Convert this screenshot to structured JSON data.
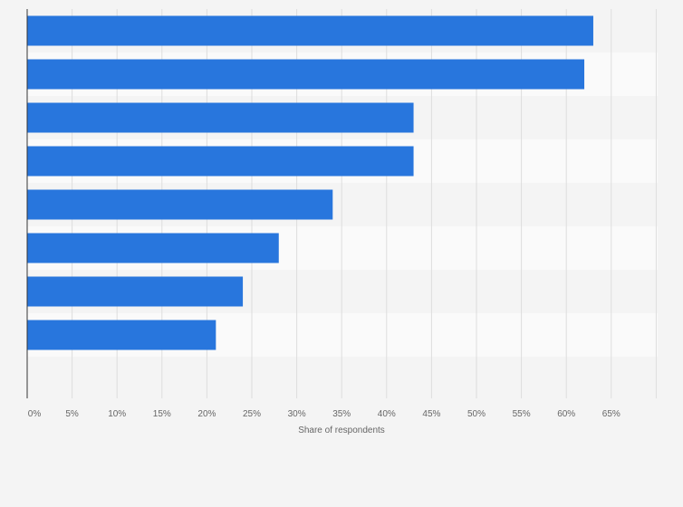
{
  "chart_data": {
    "type": "bar",
    "orientation": "horizontal",
    "categories": [
      "",
      "",
      "",
      "",
      "",
      "",
      "",
      ""
    ],
    "values": [
      63,
      62,
      43,
      43,
      34,
      28,
      24,
      21
    ],
    "xlabel": "Share of respondents",
    "ylabel": "",
    "xlim": [
      0,
      70
    ],
    "ticks": [
      0,
      5,
      10,
      15,
      20,
      25,
      30,
      35,
      40,
      45,
      50,
      55,
      60,
      65
    ],
    "tick_labels": [
      "0%",
      "5%",
      "10%",
      "15%",
      "20%",
      "25%",
      "30%",
      "35%",
      "40%",
      "45%",
      "50%",
      "55%",
      "60%",
      "65%"
    ],
    "grid": true,
    "bar_color": "#2876dd",
    "band_colors": [
      "#f4f4f4",
      "#fafafa"
    ],
    "gridline_color": "#dddddd",
    "axis_color": "#333333"
  }
}
